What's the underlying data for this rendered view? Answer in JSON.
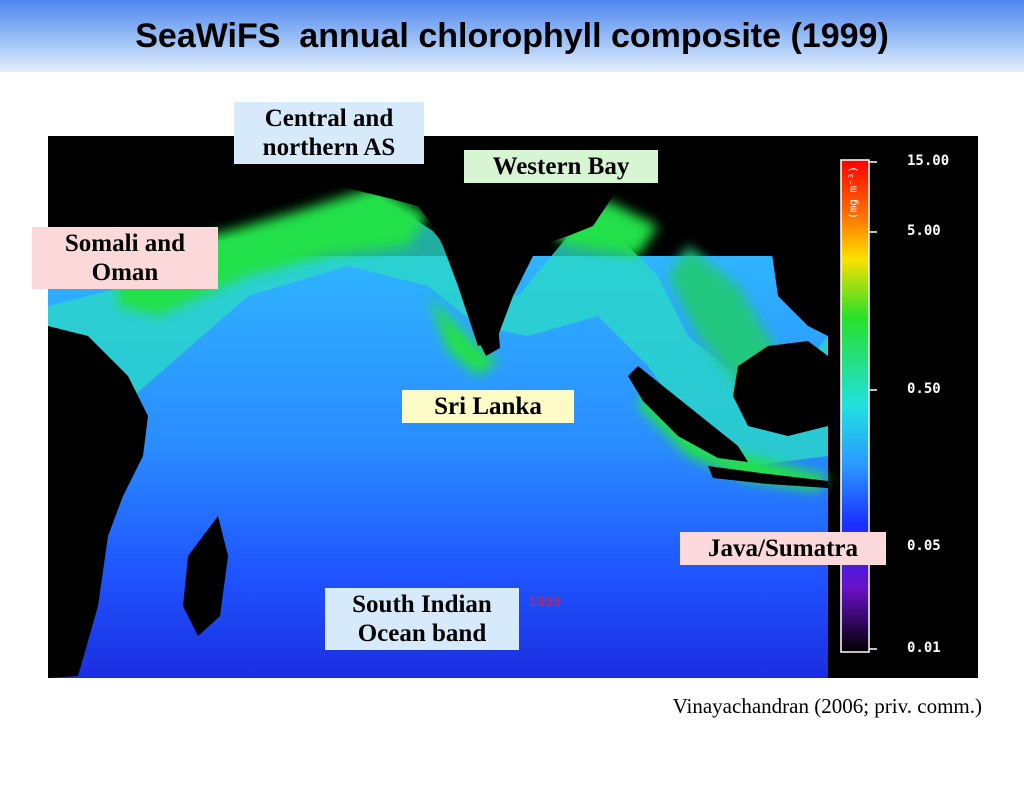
{
  "title": "SeaWiFS  annual chlorophyll composite (1999)",
  "map": {
    "labels": {
      "central_northern_as": [
        "Central  and",
        "northern AS"
      ],
      "western_bay": [
        "Western Bay"
      ],
      "somali_oman": [
        "Somali and",
        "Oman"
      ],
      "sri_lanka": [
        "Sri Lanka"
      ],
      "java_sumatra": [
        "Java/Sumatra"
      ],
      "south_indian_ocean": [
        "South Indian",
        "Ocean band"
      ]
    },
    "year_stamp": "1999"
  },
  "colorbar": {
    "unit": "(mg m⁻³)",
    "ticks": [
      "15.00",
      "5.00",
      "0.50",
      "0.05",
      "0.01"
    ],
    "tick_values": [
      15.0,
      5.0,
      0.5,
      0.05,
      0.01
    ]
  },
  "credit": "Vinayachandran (2006; priv. comm.)",
  "colors": {
    "ocean_low": "#1a3cff",
    "ocean_mid": "#2fa8ff",
    "coastal_high": "#22e04a",
    "land": "#000000"
  }
}
